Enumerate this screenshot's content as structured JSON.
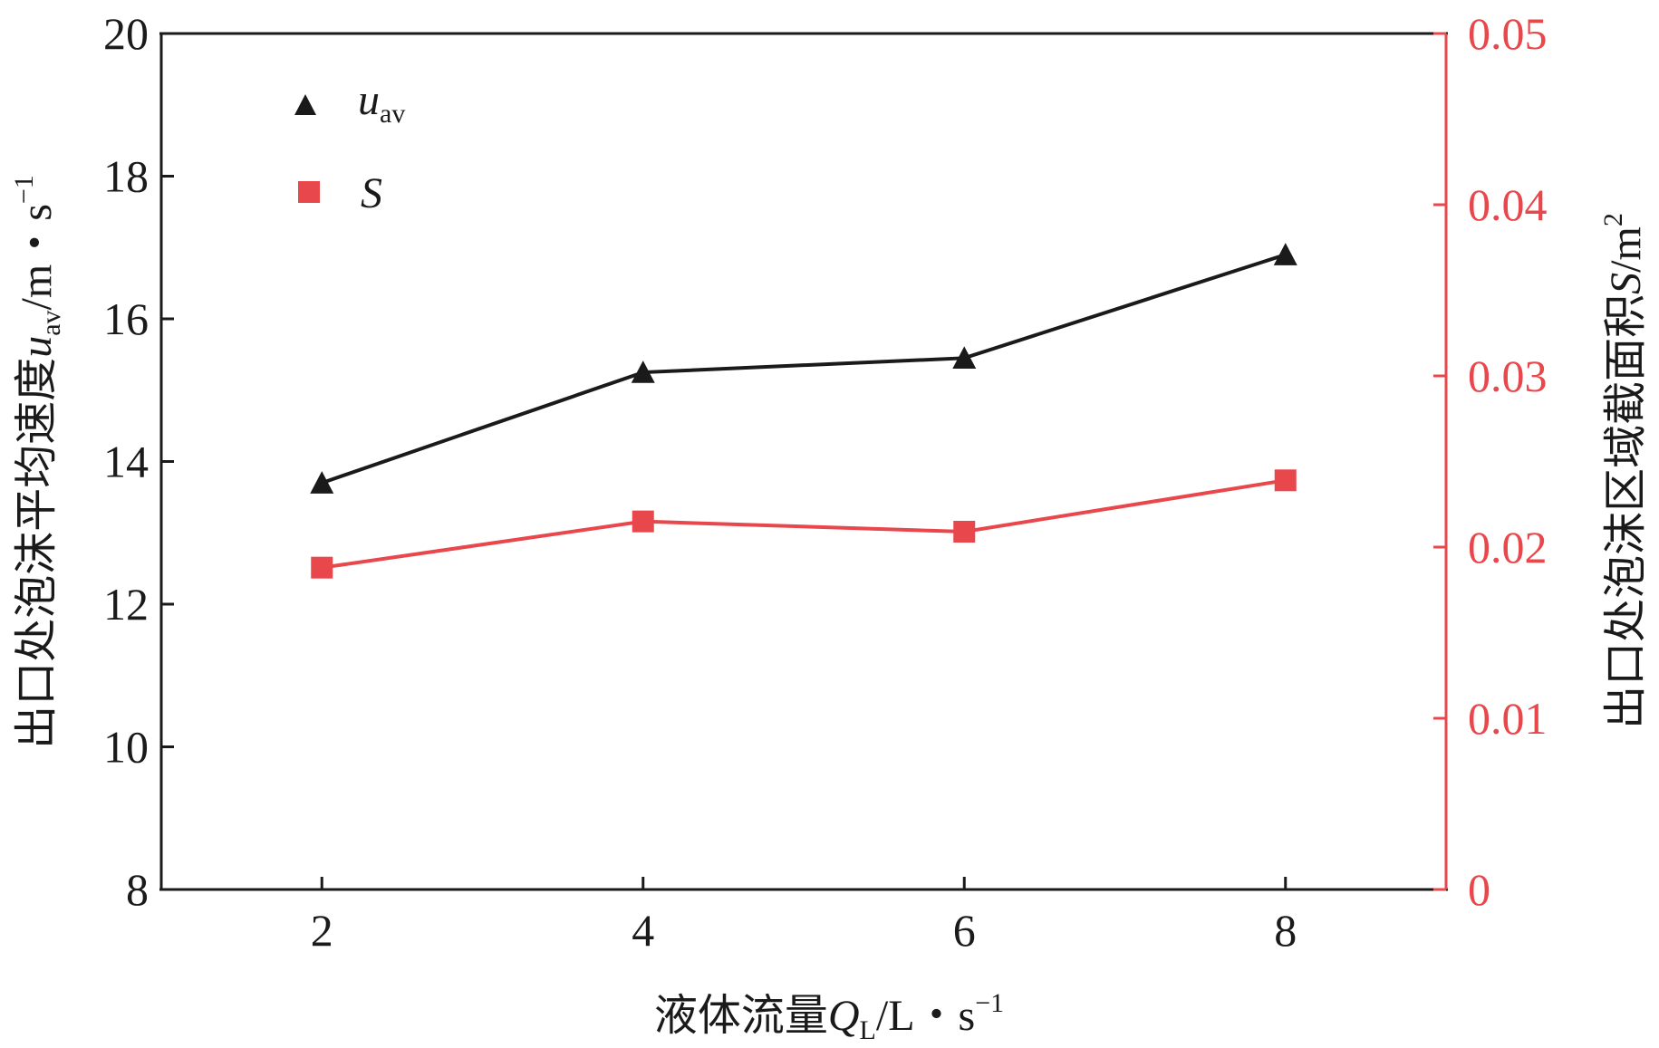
{
  "chart_data": {
    "type": "line",
    "x": [
      2,
      4,
      6,
      8
    ],
    "xlim": [
      1,
      9
    ],
    "xticks": [
      2,
      4,
      6,
      8
    ],
    "xlabel": "液体流量Q_L/L・s⁻¹",
    "y_left": {
      "label": "出口处泡沫平均速度u_av/m・s⁻¹",
      "lim": [
        8,
        20
      ],
      "ticks": [
        8,
        10,
        12,
        14,
        16,
        18,
        20
      ]
    },
    "y_right": {
      "label": "出口处泡沫区域截面积S/m²",
      "lim": [
        0,
        0.05
      ],
      "ticks": [
        "0",
        "0.01",
        "0.02",
        "0.03",
        "0.04",
        "0.05"
      ]
    },
    "series": [
      {
        "name": "u_av",
        "axis": "left",
        "marker": "triangle",
        "color": "#1a1a1a",
        "values": [
          13.7,
          15.25,
          15.45,
          16.9
        ]
      },
      {
        "name": "S",
        "axis": "right",
        "marker": "square",
        "color": "#e8474c",
        "values": [
          0.0188,
          0.0215,
          0.0209,
          0.0239
        ]
      }
    ],
    "legend_position": "top-left",
    "grid": false
  },
  "labels": {
    "xlabel_main": "液体流量",
    "xlabel_var": "Q",
    "xlabel_sub": "L",
    "xlabel_unit": "/L・s",
    "xlabel_sup": "−1",
    "ylabel_left_main": "出口处泡沫平均速度",
    "ylabel_left_var": "u",
    "ylabel_left_sub": "av",
    "ylabel_left_unit": "/m・s",
    "ylabel_left_sup": "−1",
    "ylabel_right_main": "出口处泡沫区域截面积",
    "ylabel_right_var": "S",
    "ylabel_right_unit": "/m",
    "ylabel_right_sup": "2",
    "legend_u_var": "u",
    "legend_u_sub": "av",
    "legend_s_var": "S"
  }
}
